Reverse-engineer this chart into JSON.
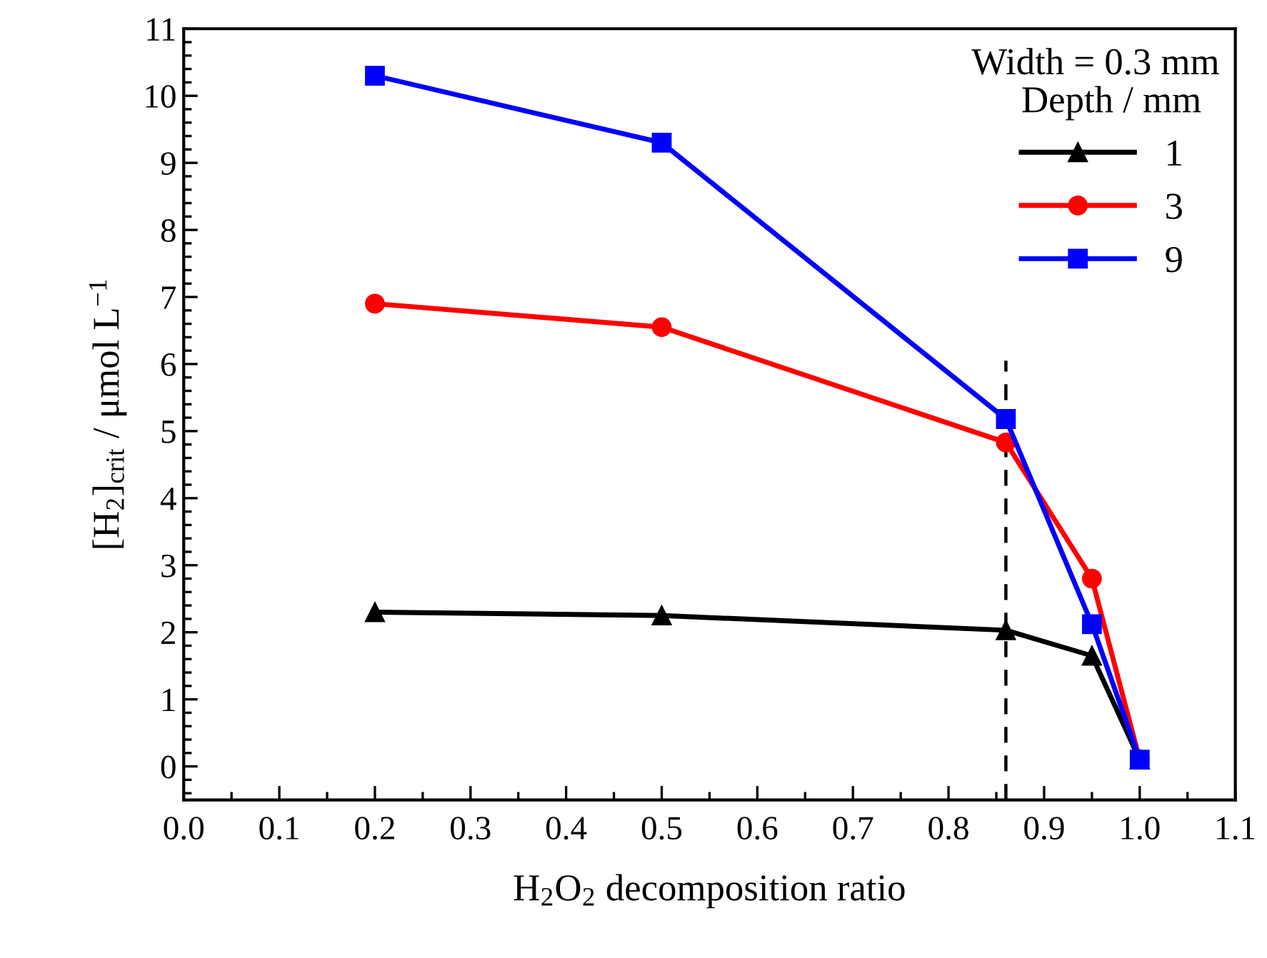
{
  "chart_data": {
    "type": "line",
    "xlabel": "H$_{2}$O$_{2}$ decomposition ratio",
    "ylabel": "[H$_{2}$]$_{crit}$ / μmol L$^{−1}$",
    "legend_title": "Depth / mm",
    "annotations": [
      "Width = 0.3 mm"
    ],
    "x": [
      0.2,
      0.5,
      0.86,
      0.95,
      1.0
    ],
    "series": [
      {
        "name": "1",
        "color": "#000000",
        "marker": "triangle",
        "values": [
          2.3,
          2.25,
          2.03,
          1.65,
          0.1
        ]
      },
      {
        "name": "3",
        "color": "#ff0000",
        "marker": "circle",
        "values": [
          6.9,
          6.55,
          4.83,
          2.8,
          0.1
        ]
      },
      {
        "name": "9",
        "color": "#0000ff",
        "marker": "square",
        "values": [
          10.3,
          9.3,
          5.18,
          2.12,
          0.1
        ]
      },
      {
        "color": "#000000",
        "marker": "none",
        "line_style": "dashed",
        "x": [
          0.86,
          0.86
        ],
        "values": [
          -0.5,
          6.05
        ]
      }
    ],
    "xlim": [
      0,
      1.1
    ],
    "ylim": [
      -0.5,
      11
    ],
    "xticks": [
      {
        "value": 0,
        "label": "0.0"
      },
      {
        "value": 0.1,
        "label": "0.1"
      },
      {
        "value": 0.2,
        "label": "0.2"
      },
      {
        "value": 0.3,
        "label": "0.3"
      },
      {
        "value": 0.4,
        "label": "0.4"
      },
      {
        "value": 0.5,
        "label": "0.5"
      },
      {
        "value": 0.6,
        "label": "0.6"
      },
      {
        "value": 0.7,
        "label": "0.7"
      },
      {
        "value": 0.8,
        "label": "0.8"
      },
      {
        "value": 0.9,
        "label": "0.9"
      },
      {
        "value": 1.0,
        "label": "1.0"
      },
      {
        "value": 1.1,
        "label": "1.1"
      }
    ],
    "yticks": [
      0,
      1,
      2,
      3,
      4,
      5,
      6,
      7,
      8,
      9,
      10,
      11
    ],
    "grid": false,
    "legend": "right",
    "line_style": "solid"
  }
}
